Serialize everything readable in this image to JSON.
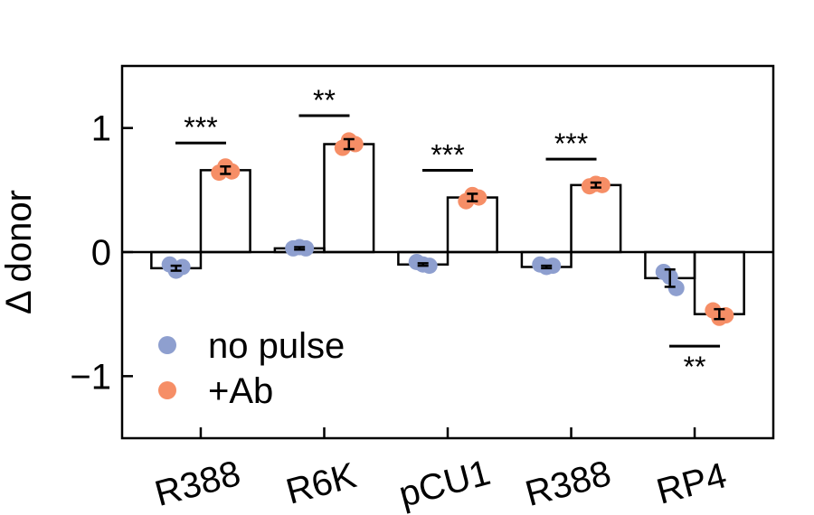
{
  "chart_data": {
    "type": "bar",
    "ylabel": "Δ donor",
    "categories": [
      "R388",
      "R6K",
      "pCU1",
      "R388",
      "RP4"
    ],
    "series": [
      {
        "name": "no pulse",
        "color": "#8e9fcf",
        "values": [
          -0.13,
          0.03,
          -0.1,
          -0.12,
          -0.21
        ],
        "errors": [
          0.02,
          0.01,
          0.01,
          0.01,
          0.07
        ],
        "points": [
          [
            -0.1,
            -0.15,
            -0.12
          ],
          [
            0.03,
            0.04,
            0.03
          ],
          [
            -0.08,
            -0.1,
            -0.11
          ],
          [
            -0.1,
            -0.12,
            -0.11
          ],
          [
            -0.16,
            -0.2,
            -0.29
          ]
        ]
      },
      {
        "name": "+Ab",
        "color": "#f68e66",
        "values": [
          0.66,
          0.87,
          0.44,
          0.54,
          -0.5
        ],
        "errors": [
          0.03,
          0.04,
          0.03,
          0.02,
          0.04
        ],
        "points": [
          [
            0.64,
            0.69,
            0.65
          ],
          [
            0.84,
            0.9,
            0.87
          ],
          [
            0.41,
            0.46,
            0.44
          ],
          [
            0.53,
            0.55,
            0.54
          ],
          [
            -0.47,
            -0.53,
            -0.51
          ]
        ]
      }
    ],
    "significance": [
      "***",
      "**",
      "***",
      "***",
      "**"
    ],
    "ylim": [
      -1.5,
      1.5
    ],
    "yticks": [
      {
        "value": -1,
        "label": "−1"
      },
      0,
      1
    ],
    "legend": "lower left"
  }
}
